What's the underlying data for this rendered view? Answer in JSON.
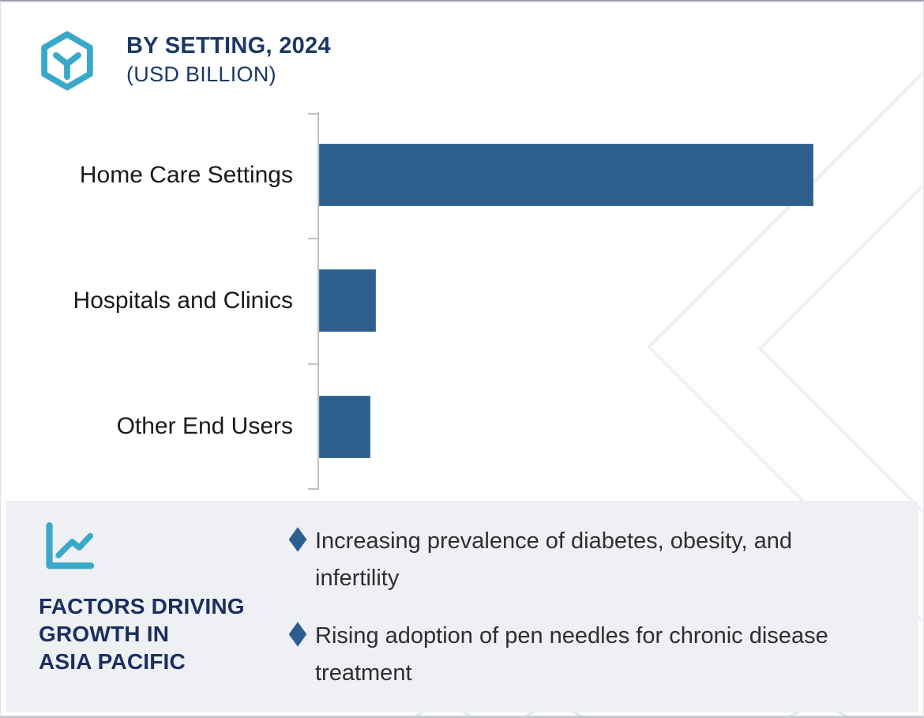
{
  "header": {
    "logo_icon": "hexagon-y-logo",
    "title": "BY SETTING, 2024",
    "subtitle": "(USD BILLION)"
  },
  "chart_data": {
    "type": "bar",
    "orientation": "horizontal",
    "title": "BY SETTING, 2024 (USD BILLION)",
    "categories": [
      "Home Care Settings",
      "Hospitals and Clinics",
      "Other End Users"
    ],
    "values": [
      100,
      11.5,
      10.4
    ],
    "value_scale": "relative, largest bar = 100; no numeric axis tick labels are shown in the figure",
    "xlim": [
      0,
      121.5
    ],
    "grid": false,
    "value_labels_shown": false,
    "legend": "none",
    "bar_color": "#2e5f8c",
    "axis_color": "#c0c0c0"
  },
  "factors_panel": {
    "icon": "line-chart-icon",
    "heading_lines": [
      "FACTORS DRIVING",
      "GROWTH IN",
      "ASIA PACIFIC"
    ],
    "bullet_icon": "diamond-bullet",
    "bullets": [
      "Increasing prevalence of diabetes, obesity, and infertility",
      "Rising adoption of pen needles for chronic disease treatment"
    ]
  },
  "colors": {
    "accent_teal": "#3aa9c9",
    "navy": "#1b3865",
    "bar_blue": "#2e5f8c",
    "panel_background": "#eef0f4",
    "text_dark": "#1f1f1f",
    "axis_gray": "#c0c0c0",
    "watermark_gray": "#f0f0f2"
  }
}
